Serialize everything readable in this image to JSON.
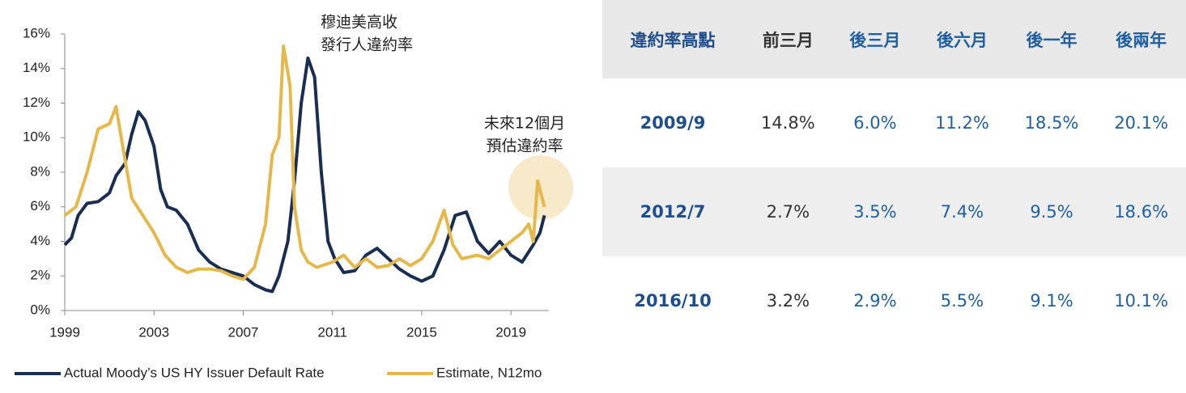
{
  "chart_data": {
    "type": "line",
    "annotations": [
      [
        "穆迪美高收",
        "發行人違約率"
      ],
      [
        "未來12個月",
        "預估違約率"
      ]
    ],
    "xlim": [
      1999,
      2020.7
    ],
    "xticks": [
      1999,
      2003,
      2007,
      2011,
      2015,
      2019
    ],
    "ylim": [
      0,
      16
    ],
    "yticks": [
      {
        "value": 0,
        "label": "0%"
      },
      {
        "value": 2,
        "label": "2%"
      },
      {
        "value": 4,
        "label": "4%"
      },
      {
        "value": 6,
        "label": "6%"
      },
      {
        "value": 8,
        "label": "8%"
      },
      {
        "value": 10,
        "label": "10%"
      },
      {
        "value": 12,
        "label": "12%"
      },
      {
        "value": 14,
        "label": "14%"
      },
      {
        "value": 16,
        "label": "16%"
      }
    ],
    "series": [
      {
        "name": "Actual Moody’s US HY Issuer Default Rate",
        "color": "#1a2e52",
        "x": [
          1999.0,
          1999.3,
          1999.6,
          2000.0,
          2000.5,
          2001.0,
          2001.3,
          2001.7,
          2002.0,
          2002.3,
          2002.6,
          2003.0,
          2003.3,
          2003.6,
          2004.0,
          2004.5,
          2005.0,
          2005.5,
          2006.0,
          2006.5,
          2007.0,
          2007.5,
          2008.0,
          2008.3,
          2008.6,
          2009.0,
          2009.3,
          2009.6,
          2009.9,
          2010.2,
          2010.5,
          2010.8,
          2011.1,
          2011.5,
          2012.0,
          2012.5,
          2013.0,
          2013.5,
          2014.0,
          2014.5,
          2015.0,
          2015.5,
          2016.0,
          2016.5,
          2017.0,
          2017.5,
          2018.0,
          2018.5,
          2019.0,
          2019.5,
          2020.0,
          2020.3,
          2020.5
        ],
        "values": [
          3.8,
          4.2,
          5.5,
          6.2,
          6.3,
          6.8,
          7.8,
          8.5,
          10.2,
          11.5,
          11.0,
          9.5,
          7.0,
          6.0,
          5.8,
          5.0,
          3.5,
          2.8,
          2.4,
          2.2,
          2.0,
          1.5,
          1.2,
          1.1,
          2.0,
          4.0,
          7.5,
          12.0,
          14.6,
          13.5,
          8.0,
          4.0,
          3.0,
          2.2,
          2.3,
          3.2,
          3.6,
          3.0,
          2.4,
          2.0,
          1.7,
          2.0,
          3.5,
          5.5,
          5.7,
          4.0,
          3.3,
          4.0,
          3.2,
          2.8,
          3.8,
          4.5,
          5.5
        ]
      },
      {
        "name": "Estimate, N12mo",
        "color": "#e4b84a",
        "x": [
          1999.0,
          1999.5,
          2000.0,
          2000.5,
          2001.0,
          2001.3,
          2001.6,
          2002.0,
          2002.5,
          2003.0,
          2003.5,
          2004.0,
          2004.5,
          2005.0,
          2005.5,
          2006.0,
          2006.5,
          2007.0,
          2007.5,
          2008.0,
          2008.3,
          2008.6,
          2008.8,
          2009.1,
          2009.3,
          2009.6,
          2009.9,
          2010.3,
          2011.0,
          2011.5,
          2012.0,
          2012.5,
          2013.0,
          2013.5,
          2014.0,
          2014.5,
          2015.0,
          2015.5,
          2016.0,
          2016.4,
          2016.8,
          2017.5,
          2018.0,
          2018.5,
          2019.0,
          2019.5,
          2019.8,
          2020.0,
          2020.2,
          2020.5
        ],
        "values": [
          5.5,
          6.0,
          8.0,
          10.5,
          10.8,
          11.8,
          9.5,
          6.5,
          5.5,
          4.5,
          3.2,
          2.5,
          2.2,
          2.4,
          2.4,
          2.3,
          2.0,
          1.8,
          2.5,
          5.0,
          9.0,
          10.0,
          15.3,
          13.0,
          6.0,
          3.5,
          2.8,
          2.5,
          2.8,
          3.2,
          2.5,
          3.0,
          2.5,
          2.6,
          3.0,
          2.6,
          3.0,
          4.0,
          5.8,
          3.8,
          3.0,
          3.2,
          3.0,
          3.5,
          4.0,
          4.5,
          5.0,
          4.0,
          7.5,
          6.0
        ]
      }
    ]
  },
  "table": {
    "header": [
      "違約率高點",
      "前三月",
      "後三月",
      "後六月",
      "後一年",
      "後兩年"
    ],
    "rows": [
      [
        "2009/9",
        "14.8%",
        "6.0%",
        "11.2%",
        "18.5%",
        "20.1%"
      ],
      [
        "2012/7",
        "2.7%",
        "3.5%",
        "7.4%",
        "9.5%",
        "18.6%"
      ],
      [
        "2016/10",
        "3.2%",
        "2.9%",
        "5.5%",
        "9.1%",
        "10.1%"
      ]
    ]
  }
}
